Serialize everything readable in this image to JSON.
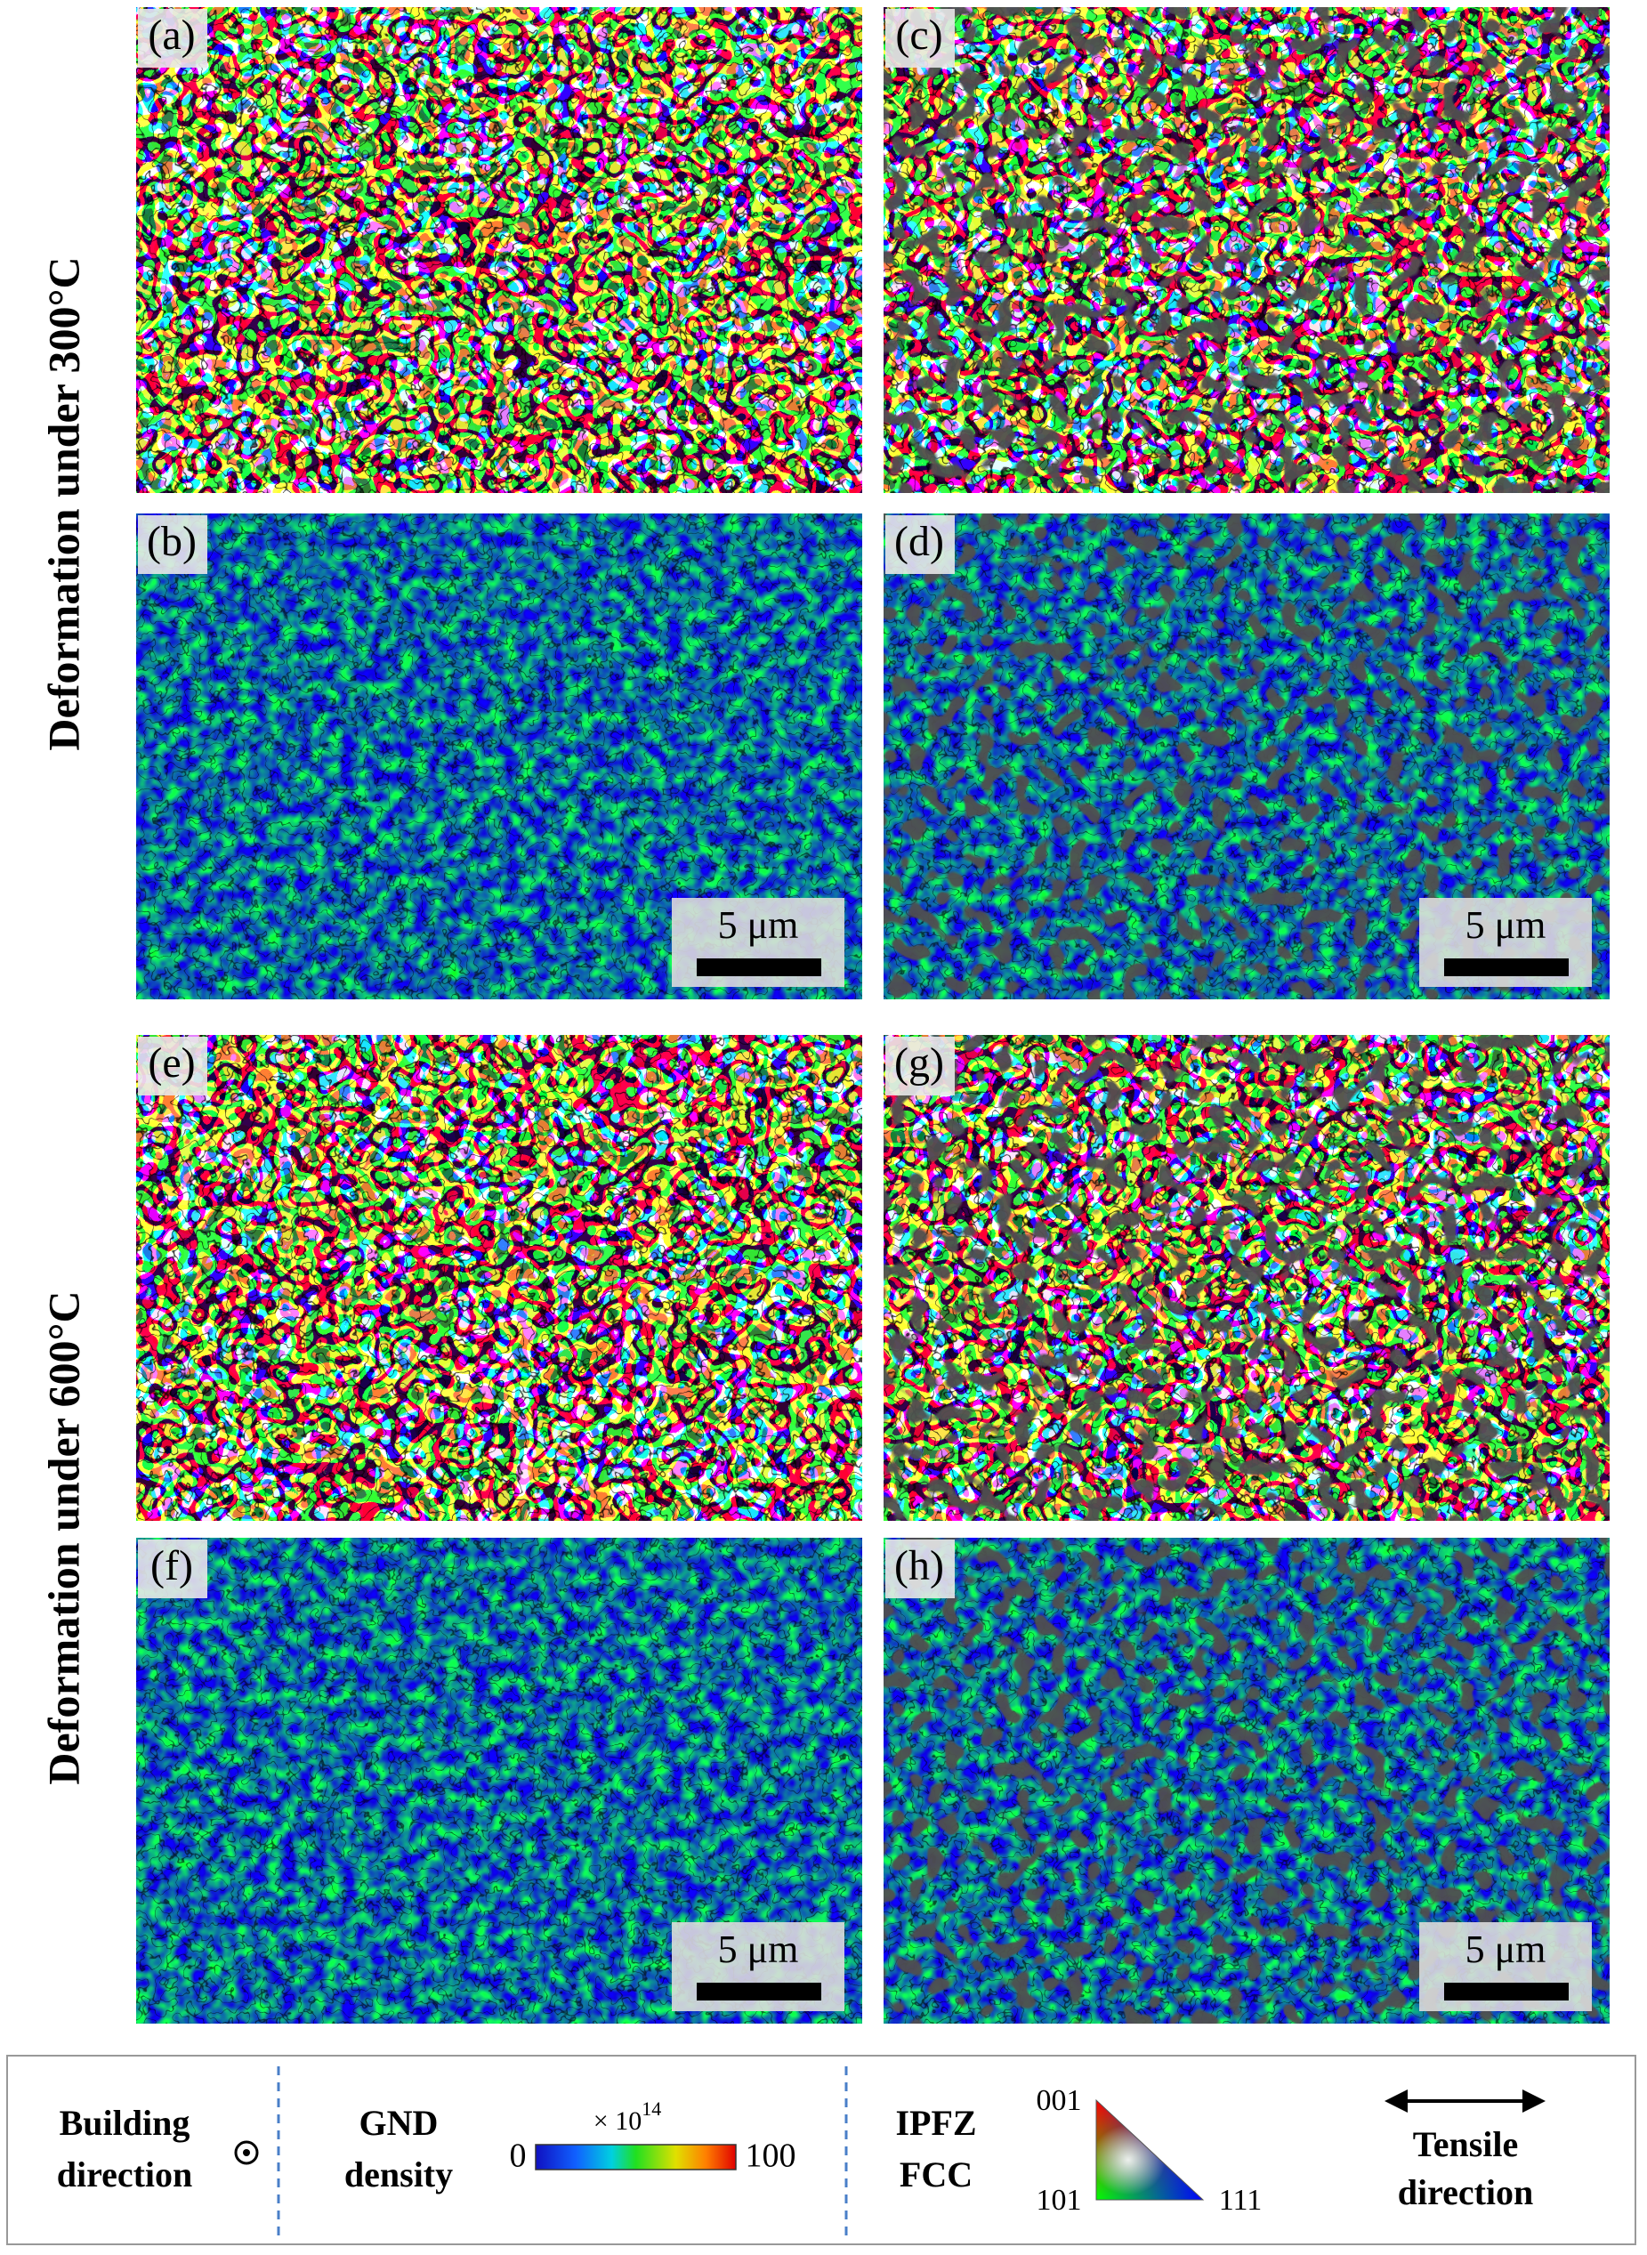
{
  "row_labels": [
    "Deformation under 300°C",
    "Deformation under 600°C"
  ],
  "panels": [
    {
      "label": "(a)"
    },
    {
      "label": "(b)",
      "scale_bar": "5 μm"
    },
    {
      "label": "(c)"
    },
    {
      "label": "(d)",
      "scale_bar": "5 μm"
    },
    {
      "label": "(e)"
    },
    {
      "label": "(f)",
      "scale_bar": "5 μm"
    },
    {
      "label": "(g)"
    },
    {
      "label": "(h)",
      "scale_bar": "5 μm"
    }
  ],
  "legend": {
    "building_direction": [
      "Building",
      "direction"
    ],
    "gnd": {
      "title": [
        "GND",
        "density"
      ],
      "min": 0,
      "max": 100,
      "multiplier": "× 10",
      "exponent": "14"
    },
    "ipf": {
      "title": [
        "IPFZ",
        "FCC"
      ],
      "corners": [
        "001",
        "101",
        "111"
      ]
    },
    "tensile_direction": [
      "Tensile",
      "direction"
    ]
  }
}
